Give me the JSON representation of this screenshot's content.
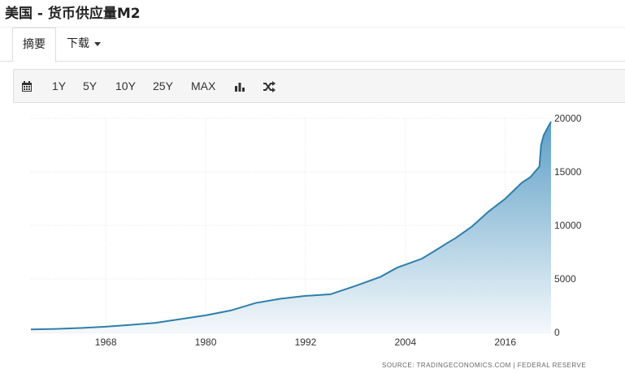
{
  "page": {
    "title": "美国 - 货币供应量M2"
  },
  "tabs": [
    {
      "label": "摘要",
      "active": true
    },
    {
      "label": "下载",
      "active": false
    }
  ],
  "toolbar": {
    "calendar_icon": "calendar-icon",
    "ranges": [
      "1Y",
      "5Y",
      "10Y",
      "25Y",
      "MAX"
    ],
    "bar_icon": "bar-chart-icon",
    "shuffle_icon": "shuffle-icon"
  },
  "colors": {
    "line": "#2f7fab",
    "fill_top": "#5d9fc6",
    "fill_bottom": "#f4f8fb",
    "grid": "#e5e5e5"
  },
  "source": "SOURCE: TRADINGECONOMICS.COM  |  FEDERAL RESERVE",
  "chart_data": {
    "type": "area",
    "x": [
      1959,
      1962,
      1965,
      1968,
      1971,
      1974,
      1977,
      1980,
      1983,
      1986,
      1989,
      1992,
      1995,
      1998,
      2001,
      2003,
      2006,
      2008,
      2009,
      2010,
      2012,
      2014,
      2016,
      2018,
      2019,
      2020.1,
      2020.3,
      2020.6,
      2021,
      2021.5
    ],
    "y": [
      290,
      330,
      420,
      540,
      710,
      900,
      1250,
      1600,
      2050,
      2750,
      3150,
      3420,
      3570,
      4350,
      5200,
      6050,
      6900,
      7850,
      8350,
      8800,
      9900,
      11300,
      12500,
      14000,
      14500,
      15500,
      17500,
      18400,
      19000,
      19700
    ],
    "xlim": [
      1959,
      2021.5
    ],
    "ylim": [
      0,
      20000
    ],
    "xticks": [
      1968,
      1980,
      1992,
      2004,
      2016
    ],
    "yticks": [
      0,
      5000,
      10000,
      15000,
      20000
    ],
    "grid": true,
    "legend": "none"
  }
}
